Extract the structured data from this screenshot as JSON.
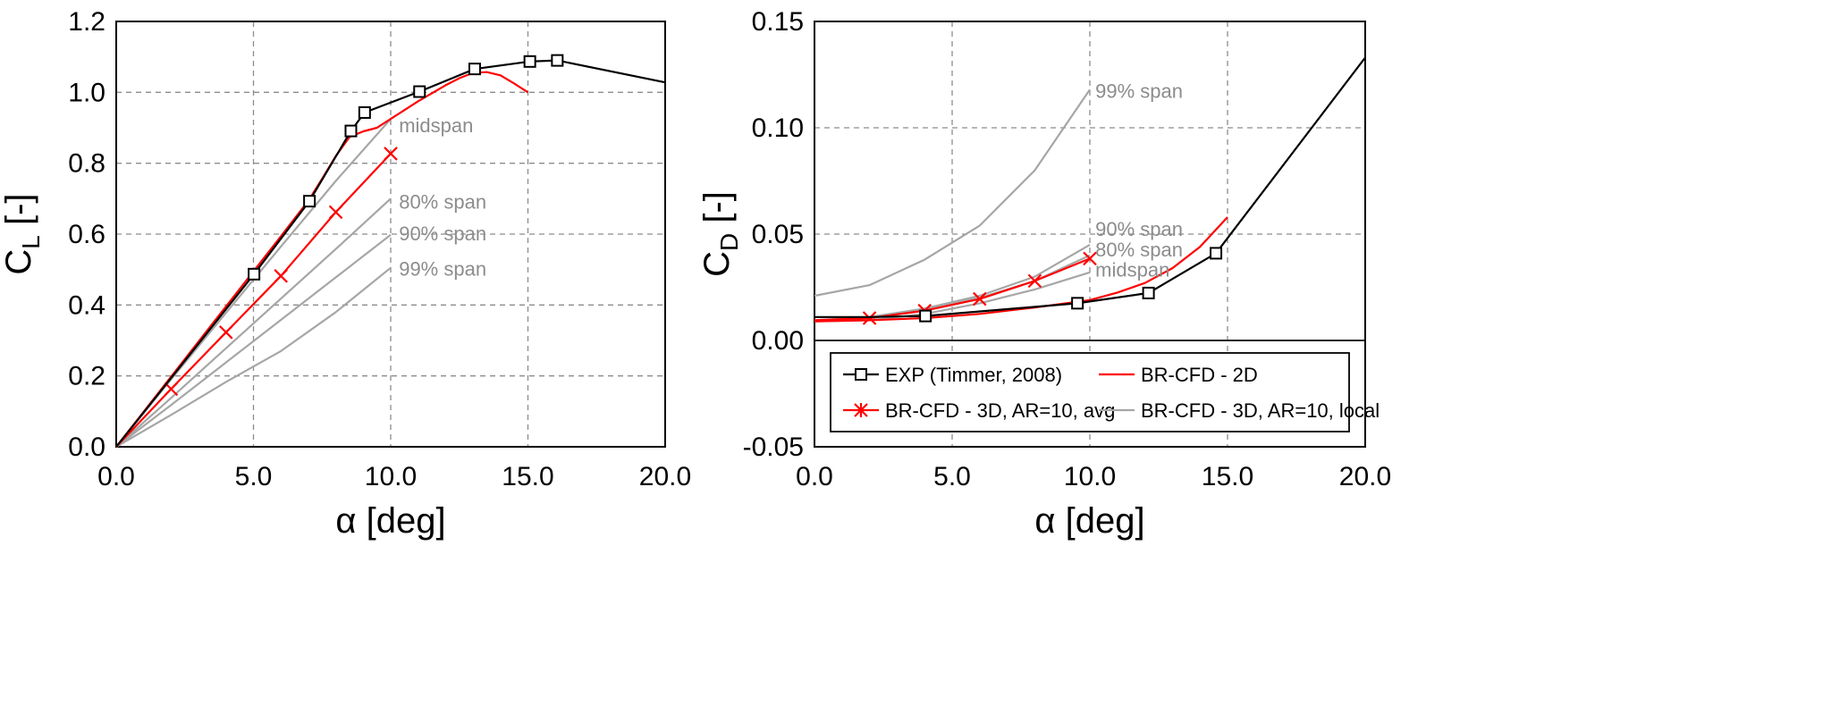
{
  "chart_data": [
    {
      "type": "line",
      "id": "cl",
      "ylabel_main": "C",
      "ylabel_sub": "L",
      "ylabel_unit": " [-]",
      "xlabel": "α [deg]",
      "xlim": [
        0,
        20
      ],
      "ylim": [
        0,
        1.2
      ],
      "xticks": [
        0,
        5,
        10,
        15,
        20
      ],
      "xtick_labels": [
        "0.0",
        "5.0",
        "10.0",
        "15.0",
        "20.0"
      ],
      "yticks": [
        0,
        0.2,
        0.4,
        0.6,
        0.8,
        1.0,
        1.2
      ],
      "ytick_labels": [
        "0.0",
        "0.2",
        "0.4",
        "0.6",
        "0.8",
        "1.0",
        "1.2"
      ],
      "grid": "dashed",
      "series": [
        {
          "name": "EXP (Timmer, 2008)",
          "style": "exp",
          "x": [
            0,
            5.02,
            7.04,
            8.55,
            9.05,
            11.05,
            13.06,
            15.07,
            16.07,
            20
          ],
          "y": [
            0,
            0.487,
            0.693,
            0.891,
            0.943,
            1.002,
            1.066,
            1.087,
            1.09,
            1.028
          ],
          "markers": [
            false,
            true,
            true,
            true,
            true,
            true,
            true,
            true,
            true,
            false
          ]
        },
        {
          "name": "BR-CFD - 2D",
          "style": "cfd2d",
          "x": [
            0,
            2,
            4,
            6,
            7,
            7.5,
            8,
            8.5,
            9,
            9.5,
            10,
            11,
            12,
            12.5,
            13,
            13.5,
            14,
            14.5,
            15
          ],
          "y": [
            0,
            0.198,
            0.396,
            0.594,
            0.694,
            0.756,
            0.82,
            0.874,
            0.89,
            0.9,
            0.925,
            0.975,
            1.02,
            1.04,
            1.055,
            1.057,
            1.048,
            1.025,
            1.0
          ]
        },
        {
          "name": "BR-CFD - 3D, AR=10, avg",
          "style": "cfd3d",
          "x": [
            0,
            2,
            4,
            6,
            8,
            10
          ],
          "y": [
            0,
            0.163,
            0.323,
            0.482,
            0.662,
            0.827
          ],
          "markers": [
            false,
            true,
            true,
            true,
            true,
            true
          ]
        },
        {
          "name": "BR-CFD - 3D, AR=10, local",
          "style": "local",
          "label": "midspan",
          "x": [
            0,
            2,
            4,
            6,
            8,
            10
          ],
          "y": [
            0,
            0.19,
            0.378,
            0.565,
            0.75,
            0.925
          ]
        },
        {
          "name": "BR-CFD - 3D, AR=10, local",
          "style": "local",
          "label": "80% span",
          "x": [
            0,
            2,
            4,
            6,
            8,
            10
          ],
          "y": [
            0,
            0.138,
            0.278,
            0.418,
            0.558,
            0.7
          ]
        },
        {
          "name": "BR-CFD - 3D, AR=10, local",
          "style": "local",
          "label": "90% span",
          "x": [
            0,
            2,
            4,
            6,
            8,
            10
          ],
          "y": [
            0,
            0.118,
            0.238,
            0.358,
            0.478,
            0.598
          ]
        },
        {
          "name": "BR-CFD - 3D, AR=10, local",
          "style": "local",
          "label": "99% span",
          "x": [
            0,
            2,
            4,
            6,
            8,
            10
          ],
          "y": [
            0,
            0.09,
            0.183,
            0.27,
            0.38,
            0.505
          ]
        }
      ],
      "annotations": [
        {
          "text": "midspan",
          "x": 10.3,
          "y": 0.905
        },
        {
          "text": "80% span",
          "x": 10.3,
          "y": 0.69
        },
        {
          "text": "90% span",
          "x": 10.3,
          "y": 0.6
        },
        {
          "text": "99% span",
          "x": 10.3,
          "y": 0.5
        }
      ]
    },
    {
      "type": "line",
      "id": "cd",
      "ylabel_main": "C",
      "ylabel_sub": "D",
      "ylabel_unit": " [-]",
      "xlabel": "α [deg]",
      "xlim": [
        0,
        20
      ],
      "ylim": [
        -0.05,
        0.15
      ],
      "xticks": [
        0,
        5,
        10,
        15,
        20
      ],
      "xtick_labels": [
        "0.0",
        "5.0",
        "10.0",
        "15.0",
        "20.0"
      ],
      "yticks": [
        -0.05,
        0,
        0.05,
        0.1,
        0.15
      ],
      "ytick_labels": [
        "-0.05",
        "0.00",
        "0.05",
        "0.10",
        "0.15"
      ],
      "grid": "dashed",
      "series": [
        {
          "name": "EXP (Timmer, 2008)",
          "style": "exp",
          "x": [
            0,
            2,
            4.03,
            9.55,
            12.13,
            14.58,
            20
          ],
          "y": [
            0.011,
            0.011,
            0.0115,
            0.0175,
            0.0223,
            0.041,
            0.133
          ],
          "markers": [
            false,
            false,
            true,
            true,
            true,
            true,
            false
          ]
        },
        {
          "name": "BR-CFD - 2D",
          "style": "cfd2d",
          "x": [
            0,
            2,
            4,
            6,
            8,
            10,
            11,
            12,
            13,
            14,
            15
          ],
          "y": [
            0.009,
            0.0095,
            0.0105,
            0.0125,
            0.0155,
            0.019,
            0.0225,
            0.027,
            0.034,
            0.044,
            0.058
          ]
        },
        {
          "name": "BR-CFD - 3D, AR=10, avg",
          "style": "cfd3d",
          "x": [
            0,
            2,
            4,
            6,
            8,
            10
          ],
          "y": [
            0.0095,
            0.0105,
            0.014,
            0.0195,
            0.028,
            0.0385
          ],
          "markers": [
            false,
            true,
            true,
            true,
            true,
            true
          ]
        },
        {
          "name": "BR-CFD - 3D, AR=10, local",
          "style": "local",
          "label": "99% span",
          "x": [
            0,
            2,
            4,
            6,
            8,
            10
          ],
          "y": [
            0.021,
            0.026,
            0.038,
            0.054,
            0.08,
            0.118
          ]
        },
        {
          "name": "BR-CFD - 3D, AR=10, local",
          "style": "local",
          "label": "90% span",
          "x": [
            0,
            2,
            4,
            6,
            8,
            10
          ],
          "y": [
            0.0095,
            0.011,
            0.015,
            0.021,
            0.03,
            0.045
          ]
        },
        {
          "name": "BR-CFD - 3D, AR=10, local",
          "style": "local",
          "label": "80% span",
          "x": [
            0,
            2,
            4,
            6,
            8,
            10
          ],
          "y": [
            0.0095,
            0.0105,
            0.0145,
            0.02,
            0.028,
            0.04
          ]
        },
        {
          "name": "BR-CFD - 3D, AR=10, local",
          "style": "local",
          "label": "midspan",
          "x": [
            0,
            2,
            4,
            6,
            8,
            10
          ],
          "y": [
            0.009,
            0.0095,
            0.0125,
            0.0175,
            0.024,
            0.032
          ]
        }
      ],
      "annotations": [
        {
          "text": "99% span",
          "x": 10.2,
          "y": 0.117
        },
        {
          "text": "90% span",
          "x": 10.2,
          "y": 0.052
        },
        {
          "text": "80% span",
          "x": 10.2,
          "y": 0.0425
        },
        {
          "text": "midspan",
          "x": 10.2,
          "y": 0.033
        }
      ],
      "legend": {
        "placement": "bottom, inside right plot",
        "entries": [
          {
            "label": "EXP (Timmer, 2008)",
            "style": "exp"
          },
          {
            "label": "BR-CFD - 2D",
            "style": "cfd2d"
          },
          {
            "label": "BR-CFD - 3D, AR=10, avg",
            "style": "cfd3d"
          },
          {
            "label": "BR-CFD - 3D, AR=10, local",
            "style": "local"
          }
        ]
      }
    }
  ],
  "colors": {
    "exp": "#000000",
    "cfd2d": "#ff0000",
    "cfd3d": "#ff0000",
    "local": "#a6a6a6",
    "grid": "#8c8c8c",
    "annotation": "#8c8c8c"
  }
}
